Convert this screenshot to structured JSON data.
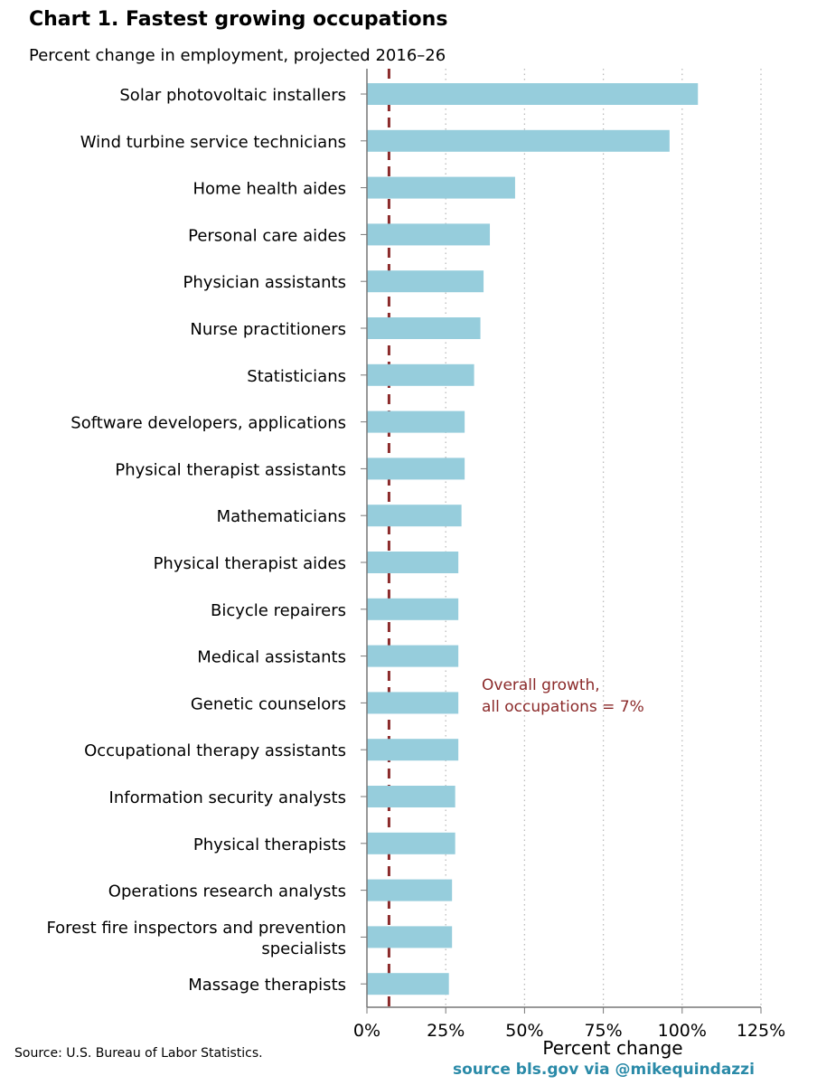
{
  "title": "Chart 1. Fastest growing occupations",
  "subtitle": "Percent change in employment, projected 2016–26",
  "source": "Source: U.S. Bureau of Labor Statistics.",
  "credit": "source bls.gov via @mikequindazzi",
  "colors": {
    "bar": "#96cddc",
    "reference": "#8b2a2a",
    "annotation": "#8b2a2a",
    "grid": "#bbbbbb",
    "axis": "#777777"
  },
  "chart_data": {
    "type": "bar",
    "orientation": "horizontal",
    "title": "Chart 1. Fastest growing occupations",
    "subtitle": "Percent change in employment, projected 2016–26",
    "xlabel": "Percent change",
    "ylabel": "",
    "xlim": [
      0,
      125
    ],
    "x_ticks": [
      0,
      25,
      50,
      75,
      100,
      125
    ],
    "x_tick_labels": [
      "0%",
      "25%",
      "50%",
      "75%",
      "100%",
      "125%"
    ],
    "grid": "vertical dotted",
    "categories": [
      [
        "Solar photovoltaic installers"
      ],
      [
        "Wind turbine service technicians"
      ],
      [
        "Home health aides"
      ],
      [
        "Personal care aides"
      ],
      [
        "Physician assistants"
      ],
      [
        "Nurse practitioners"
      ],
      [
        "Statisticians"
      ],
      [
        "Software developers, applications"
      ],
      [
        "Physical therapist assistants"
      ],
      [
        "Mathematicians"
      ],
      [
        "Physical therapist aides"
      ],
      [
        "Bicycle repairers"
      ],
      [
        "Medical assistants"
      ],
      [
        "Genetic counselors"
      ],
      [
        "Occupational therapy assistants"
      ],
      [
        "Information security analysts"
      ],
      [
        "Physical therapists"
      ],
      [
        "Operations research analysts"
      ],
      [
        "Forest fire inspectors and prevention",
        "specialists"
      ],
      [
        "Massage therapists"
      ]
    ],
    "values": [
      105,
      96,
      47,
      39,
      37,
      36,
      34,
      31,
      31,
      30,
      29,
      29,
      29,
      29,
      29,
      28,
      28,
      27,
      27,
      26
    ],
    "reference_line": {
      "value": 7,
      "label": [
        "Overall growth,",
        "all occupations = 7%"
      ]
    }
  }
}
